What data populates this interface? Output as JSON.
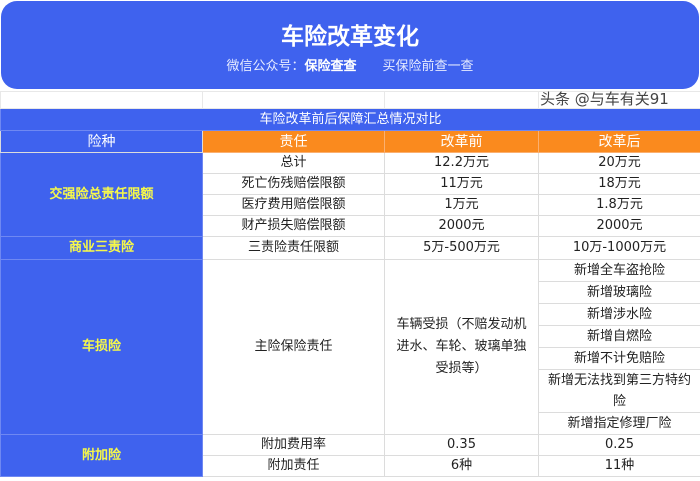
{
  "banner": {
    "title": "车险改革变化",
    "sub_label": "微信公众号：",
    "sub_name": "保险查查",
    "slogan": "买保险前查一查"
  },
  "table": {
    "title": "车险改革前后保障汇总情况对比",
    "headers": [
      "险种",
      "责任",
      "改革前",
      "改革后"
    ],
    "jqx": {
      "category": "交强险总责任限额",
      "rows": [
        [
          "总计",
          "12.2万元",
          "20万元"
        ],
        [
          "死亡伤残赔偿限额",
          "11万元",
          "18万元"
        ],
        [
          "医疗费用赔偿限额",
          "1万元",
          "1.8万元"
        ],
        [
          "财产损失赔偿限额",
          "2000元",
          "2000元"
        ]
      ]
    },
    "szx": {
      "category": "商业三责险",
      "row": [
        "三责险责任限额",
        "5万-500万元",
        "10万-1000万元"
      ]
    },
    "csx": {
      "category": "车损险",
      "duty": "主险保险责任",
      "before": "车辆受损（不赔发动机进水、车轮、玻璃单独受损等）",
      "after": [
        "新增全车盗抢险",
        "新增玻璃险",
        "新增涉水险",
        "新增自燃险",
        "新增不计免赔险",
        "新增无法找到第三方特约险",
        "新增指定修理厂险"
      ]
    },
    "fjx": {
      "category": "附加险",
      "rows": [
        [
          "附加费用率",
          "0.35",
          "0.25"
        ],
        [
          "附加责任",
          "6种",
          "11种"
        ]
      ]
    }
  },
  "watermark": "头条 @与车有关91"
}
